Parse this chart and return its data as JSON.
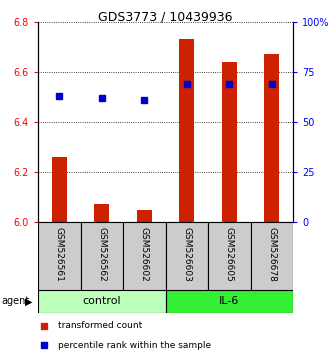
{
  "title": "GDS3773 / 10439936",
  "samples": [
    "GSM526561",
    "GSM526562",
    "GSM526602",
    "GSM526603",
    "GSM526605",
    "GSM526678"
  ],
  "groups": [
    "control",
    "control",
    "control",
    "IL-6",
    "IL-6",
    "IL-6"
  ],
  "transformed_count": [
    6.26,
    6.07,
    6.05,
    6.73,
    6.64,
    6.67
  ],
  "percentile_rank": [
    63,
    62,
    61,
    69,
    69,
    69
  ],
  "ylim_left": [
    6.0,
    6.8
  ],
  "ylim_right": [
    0,
    100
  ],
  "yticks_left": [
    6.0,
    6.2,
    6.4,
    6.6,
    6.8
  ],
  "yticks_right": [
    0,
    25,
    50,
    75,
    100
  ],
  "ytick_labels_right": [
    "0",
    "25",
    "50",
    "75",
    "100%"
  ],
  "bar_color": "#cc2200",
  "dot_color": "#0000cc",
  "control_color": "#bbffbb",
  "il6_color": "#33ee33",
  "sample_bg_color": "#cccccc",
  "agent_label": "agent",
  "legend_bar_label": "transformed count",
  "legend_dot_label": "percentile rank within the sample",
  "bar_width": 0.35
}
